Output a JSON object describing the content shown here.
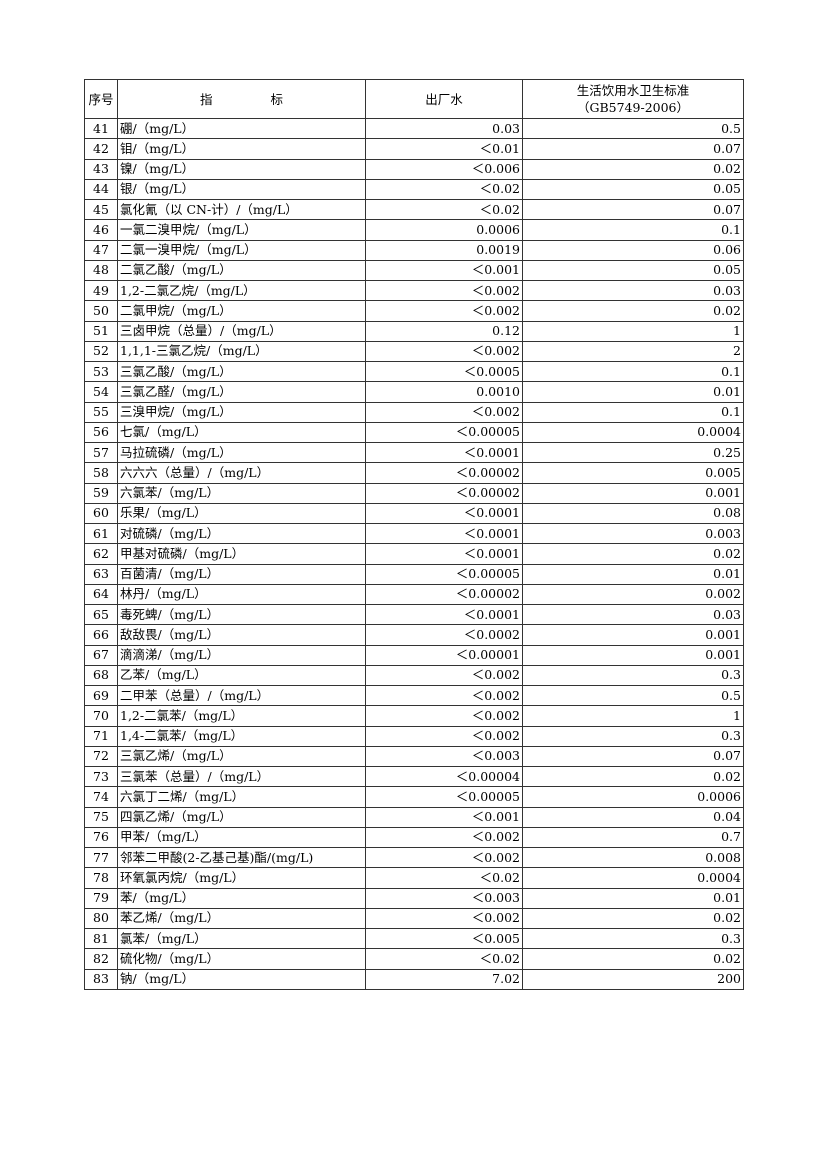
{
  "header": {
    "no": "序号",
    "indicator_1": "指",
    "indicator_2": "标",
    "factory_water": "出厂水",
    "standard_line1": "生活饮用水卫生标准",
    "standard_line2": "（GB5749-2006）"
  },
  "rows": [
    [
      "41",
      "硼/（mg/L）",
      "0.03",
      "0.5"
    ],
    [
      "42",
      "钼/（mg/L）",
      "＜0.01",
      "0.07"
    ],
    [
      "43",
      "镍/（mg/L）",
      "＜0.006",
      "0.02"
    ],
    [
      "44",
      "银/（mg/L）",
      "＜0.02",
      "0.05"
    ],
    [
      "45",
      "氯化氰（以 CN-计）/（mg/L）",
      "＜0.02",
      "0.07"
    ],
    [
      "46",
      "一氯二溴甲烷/（mg/L）",
      "0.0006",
      "0.1"
    ],
    [
      "47",
      "二氯一溴甲烷/（mg/L）",
      "0.0019",
      "0.06"
    ],
    [
      "48",
      "二氯乙酸/（mg/L）",
      "＜0.001",
      "0.05"
    ],
    [
      "49",
      "1,2-二氯乙烷/（mg/L）",
      "＜0.002",
      "0.03"
    ],
    [
      "50",
      "二氯甲烷/（mg/L）",
      "＜0.002",
      "0.02"
    ],
    [
      "51",
      "三卤甲烷（总量）/（mg/L）",
      "0.12",
      "1"
    ],
    [
      "52",
      "1,1,1-三氯乙烷/（mg/L）",
      "＜0.002",
      "2"
    ],
    [
      "53",
      "三氯乙酸/（mg/L）",
      "＜0.0005",
      "0.1"
    ],
    [
      "54",
      "三氯乙醛/（mg/L）",
      "0.0010",
      "0.01"
    ],
    [
      "55",
      "三溴甲烷/（mg/L）",
      "＜0.002",
      "0.1"
    ],
    [
      "56",
      "七氯/（mg/L）",
      "＜0.00005",
      "0.0004"
    ],
    [
      "57",
      "马拉硫磷/（mg/L）",
      "＜0.0001",
      "0.25"
    ],
    [
      "58",
      "六六六（总量）/（mg/L）",
      "＜0.00002",
      "0.005"
    ],
    [
      "59",
      "六氯苯/（mg/L）",
      "＜0.00002",
      "0.001"
    ],
    [
      "60",
      "乐果/（mg/L）",
      "＜0.0001",
      "0.08"
    ],
    [
      "61",
      "对硫磷/（mg/L）",
      "＜0.0001",
      "0.003"
    ],
    [
      "62",
      "甲基对硫磷/（mg/L）",
      "＜0.0001",
      "0.02"
    ],
    [
      "63",
      "百菌清/（mg/L）",
      "＜0.00005",
      "0.01"
    ],
    [
      "64",
      "林丹/（mg/L）",
      "＜0.00002",
      "0.002"
    ],
    [
      "65",
      "毒死蜱/（mg/L）",
      "＜0.0001",
      "0.03"
    ],
    [
      "66",
      "敌敌畏/（mg/L）",
      "＜0.0002",
      "0.001"
    ],
    [
      "67",
      "滴滴涕/（mg/L）",
      "＜0.00001",
      "0.001"
    ],
    [
      "68",
      "乙苯/（mg/L）",
      "＜0.002",
      "0.3"
    ],
    [
      "69",
      "二甲苯（总量）/（mg/L）",
      "＜0.002",
      "0.5"
    ],
    [
      "70",
      "1,2-二氯苯/（mg/L）",
      "＜0.002",
      "1"
    ],
    [
      "71",
      "1,4-二氯苯/（mg/L）",
      "＜0.002",
      "0.3"
    ],
    [
      "72",
      "三氯乙烯/（mg/L）",
      "＜0.003",
      "0.07"
    ],
    [
      "73",
      "三氯苯（总量）/（mg/L）",
      "＜0.00004",
      "0.02"
    ],
    [
      "74",
      "六氯丁二烯/（mg/L）",
      "＜0.00005",
      "0.0006"
    ],
    [
      "75",
      "四氯乙烯/（mg/L）",
      "＜0.001",
      "0.04"
    ],
    [
      "76",
      "甲苯/（mg/L）",
      "＜0.002",
      "0.7"
    ],
    [
      "77",
      "邻苯二甲酸(2-乙基己基)酯/(mg/L)",
      "＜0.002",
      "0.008"
    ],
    [
      "78",
      "环氧氯丙烷/（mg/L）",
      "＜0.02",
      "0.0004"
    ],
    [
      "79",
      "苯/（mg/L）",
      "＜0.003",
      "0.01"
    ],
    [
      "80",
      "苯乙烯/（mg/L）",
      "＜0.002",
      "0.02"
    ],
    [
      "81",
      "氯苯/（mg/L）",
      "＜0.005",
      "0.3"
    ],
    [
      "82",
      "硫化物/（mg/L）",
      "＜0.02",
      "0.02"
    ],
    [
      "83",
      "钠/（mg/L）",
      "7.02",
      "200"
    ]
  ]
}
